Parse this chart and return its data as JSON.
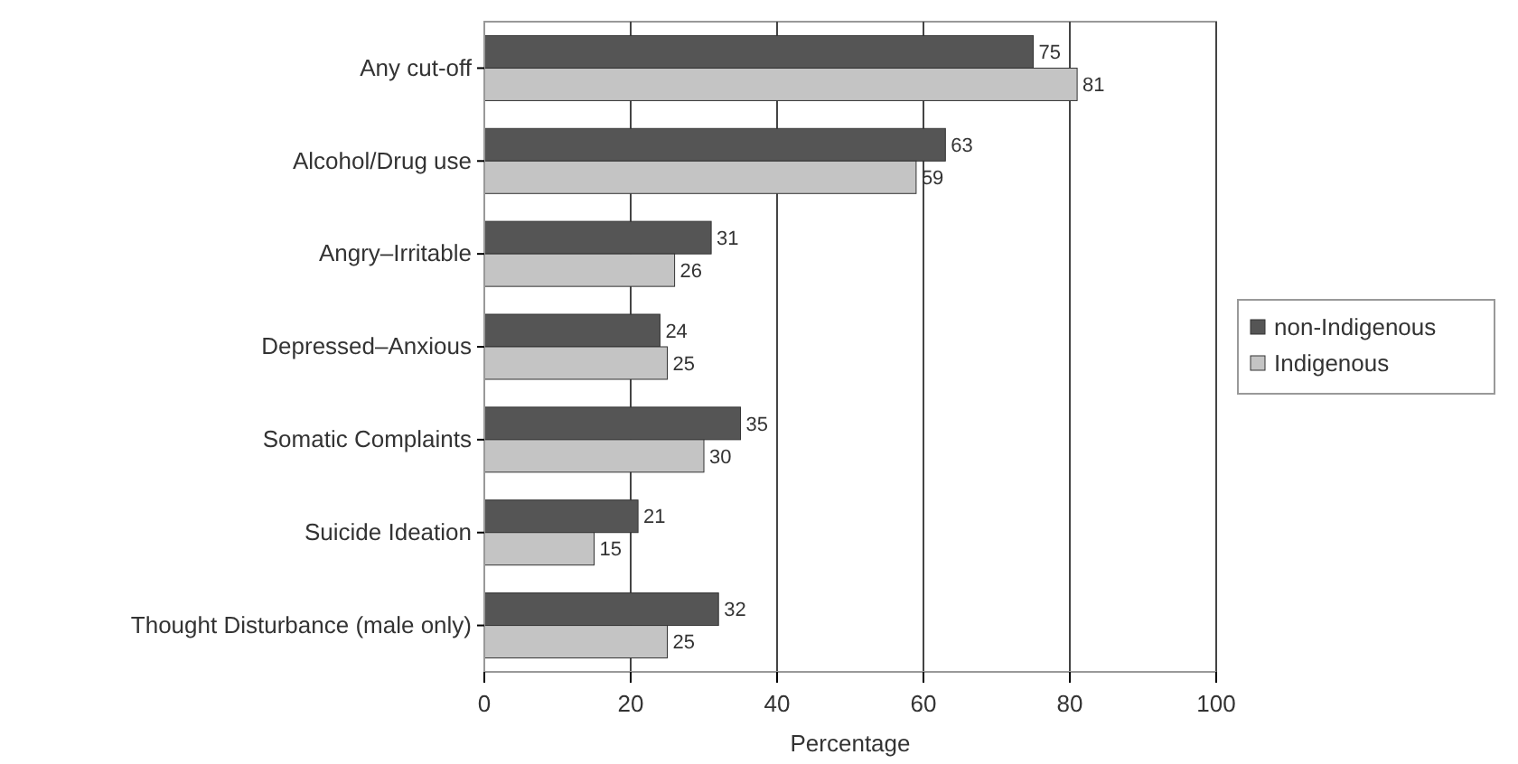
{
  "chart_data": {
    "type": "bar",
    "orientation": "horizontal",
    "xlabel": "Percentage",
    "categories": [
      "Any cut-off",
      "Alcohol/Drug use",
      "Angry–Irritable",
      "Depressed–Anxious",
      "Somatic Complaints",
      "Suicide Ideation",
      "Thought Disturbance (male only)"
    ],
    "series": [
      {
        "name": "non-Indigenous",
        "color": "#555555",
        "values": [
          75,
          63,
          31,
          24,
          35,
          21,
          32
        ]
      },
      {
        "name": "Indigenous",
        "color": "#c4c4c4",
        "values": [
          81,
          59,
          26,
          25,
          30,
          15,
          25
        ]
      }
    ],
    "xlim": [
      0,
      100
    ],
    "xticks": [
      0,
      20,
      40,
      60,
      80,
      100
    ],
    "grid": "x",
    "legend": "right",
    "data_labels": true
  }
}
